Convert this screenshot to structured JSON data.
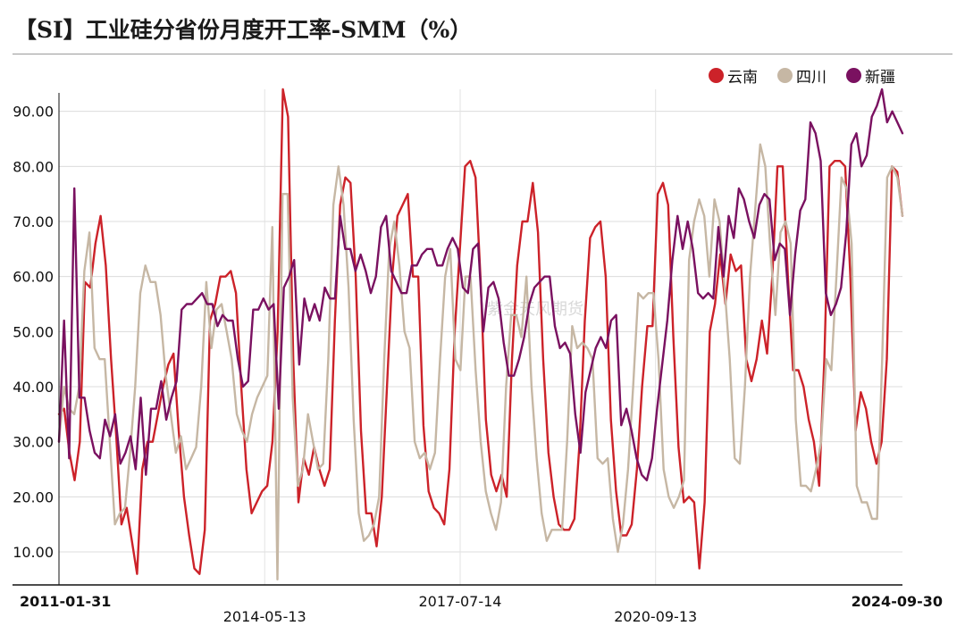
{
  "title": "【SI】工业硅分省份月度开工率-SMM（%）",
  "watermark": "紫金天风期货",
  "chart_data": {
    "type": "line",
    "title": "【SI】工业硅分省份月度开工率-SMM（%）",
    "xlabel": "",
    "ylabel": "",
    "ylim": [
      4,
      94
    ],
    "yticks": [
      "10.00",
      "20.00",
      "30.00",
      "40.00",
      "50.00",
      "60.00",
      "70.00",
      "80.00",
      "90.00"
    ],
    "xrange": [
      0,
      164
    ],
    "xticks": [
      {
        "label": "2011-01-31",
        "pos": 0,
        "row": 1,
        "bold": true
      },
      {
        "label": "2014-05-13",
        "pos": 40,
        "row": 2,
        "bold": false
      },
      {
        "label": "2017-07-14",
        "pos": 78,
        "row": 1,
        "bold": false
      },
      {
        "label": "2020-09-13",
        "pos": 116,
        "row": 2,
        "bold": false
      },
      {
        "label": "2024-09-30",
        "pos": 164,
        "row": 1,
        "bold": true
      }
    ],
    "grid": true,
    "legend_position": "top-right",
    "series": [
      {
        "name": "云南",
        "color": "#cc2229",
        "width": 2.4,
        "values": [
          35,
          36,
          28,
          23,
          30,
          59,
          58,
          66,
          71,
          62,
          45,
          31,
          15,
          18,
          12,
          6,
          25,
          30,
          30,
          35,
          40,
          44,
          46,
          32,
          20,
          13,
          7,
          6,
          14,
          52,
          55,
          60,
          60,
          61,
          57,
          40,
          25,
          17,
          19,
          21,
          22,
          30,
          50,
          94,
          89,
          45,
          19,
          27,
          24,
          29,
          25,
          22,
          25,
          52,
          73,
          78,
          77,
          60,
          32,
          17,
          17,
          11,
          20,
          40,
          60,
          71,
          73,
          75,
          60,
          60,
          33,
          21,
          18,
          17,
          15,
          25,
          50,
          65,
          80,
          81,
          78,
          59,
          34,
          24,
          21,
          24,
          20,
          45,
          62,
          70,
          70,
          77,
          68,
          45,
          28,
          20,
          15,
          14,
          14,
          16,
          30,
          52,
          67,
          69,
          70,
          60,
          34,
          21,
          13,
          13,
          15,
          25,
          40,
          51,
          51,
          75,
          77,
          73,
          49,
          29,
          19,
          20,
          19,
          7,
          19,
          50,
          55,
          64,
          55,
          64,
          61,
          62,
          45,
          41,
          45,
          52,
          46,
          60,
          80,
          80,
          60,
          43,
          43,
          40,
          34,
          30,
          22,
          45,
          80,
          81,
          81,
          80,
          60,
          32,
          39,
          36,
          30,
          26,
          30,
          45,
          80,
          79,
          71
        ]
      },
      {
        "name": "四川",
        "color": "#c6b7a4",
        "width": 2.4,
        "values": [
          30,
          40,
          36,
          35,
          40,
          61,
          68,
          47,
          45,
          45,
          30,
          15,
          17,
          18,
          28,
          40,
          57,
          62,
          59,
          59,
          53,
          42,
          35,
          28,
          31,
          25,
          27,
          29,
          40,
          59,
          47,
          54,
          55,
          50,
          45,
          35,
          32,
          30,
          35,
          38,
          40,
          42,
          69,
          5,
          75,
          75,
          38,
          22,
          25,
          35,
          30,
          25,
          26,
          45,
          73,
          80,
          73,
          58,
          34,
          17,
          12,
          13,
          15,
          20,
          45,
          65,
          70,
          62,
          50,
          47,
          30,
          27,
          28,
          25,
          28,
          45,
          60,
          65,
          45,
          43,
          60,
          60,
          43,
          30,
          21,
          17,
          14,
          19,
          40,
          53,
          53,
          49,
          60,
          40,
          27,
          17,
          12,
          14,
          14,
          14,
          30,
          51,
          47,
          48,
          47,
          45,
          27,
          26,
          27,
          16,
          10,
          15,
          25,
          40,
          57,
          56,
          57,
          57,
          45,
          25,
          20,
          18,
          20,
          23,
          63,
          70,
          74,
          71,
          60,
          74,
          70,
          58,
          45,
          27,
          26,
          40,
          60,
          72,
          84,
          80,
          65,
          53,
          68,
          70,
          66,
          34,
          22,
          22,
          21,
          25,
          30,
          45,
          43,
          60,
          78,
          76,
          66,
          22,
          19,
          19,
          16,
          16,
          45,
          78,
          80,
          78,
          71
        ]
      },
      {
        "name": "新疆",
        "color": "#7a1160",
        "width": 2.4,
        "values": [
          30,
          52,
          27,
          76,
          38,
          38,
          32,
          28,
          27,
          34,
          31,
          35,
          26,
          28,
          31,
          25,
          38,
          24,
          36,
          36,
          41,
          34,
          38,
          41,
          54,
          55,
          55,
          56,
          57,
          55,
          55,
          51,
          53,
          52,
          52,
          45,
          40,
          41,
          54,
          54,
          56,
          54,
          55,
          36,
          58,
          60,
          63,
          44,
          56,
          52,
          55,
          52,
          58,
          56,
          56,
          71,
          65,
          65,
          61,
          64,
          61,
          57,
          60,
          69,
          71,
          61,
          59,
          57,
          57,
          62,
          62,
          64,
          65,
          65,
          62,
          62,
          65,
          67,
          65,
          58,
          57,
          65,
          66,
          50,
          58,
          59,
          56,
          48,
          42,
          42,
          45,
          49,
          55,
          58,
          59,
          60,
          60,
          51,
          47,
          48,
          46,
          35,
          28,
          39,
          43,
          47,
          49,
          47,
          52,
          53,
          33,
          36,
          32,
          27,
          24,
          23,
          27,
          36,
          44,
          52,
          63,
          71,
          65,
          70,
          65,
          57,
          56,
          57,
          56,
          69,
          60,
          71,
          67,
          76,
          74,
          70,
          67,
          73,
          75,
          74,
          63,
          66,
          65,
          53,
          64,
          72,
          74,
          88,
          86,
          81,
          57,
          53,
          55,
          58,
          68,
          84,
          86,
          80,
          82,
          89,
          91,
          94,
          88,
          90,
          88,
          86
        ]
      }
    ]
  }
}
